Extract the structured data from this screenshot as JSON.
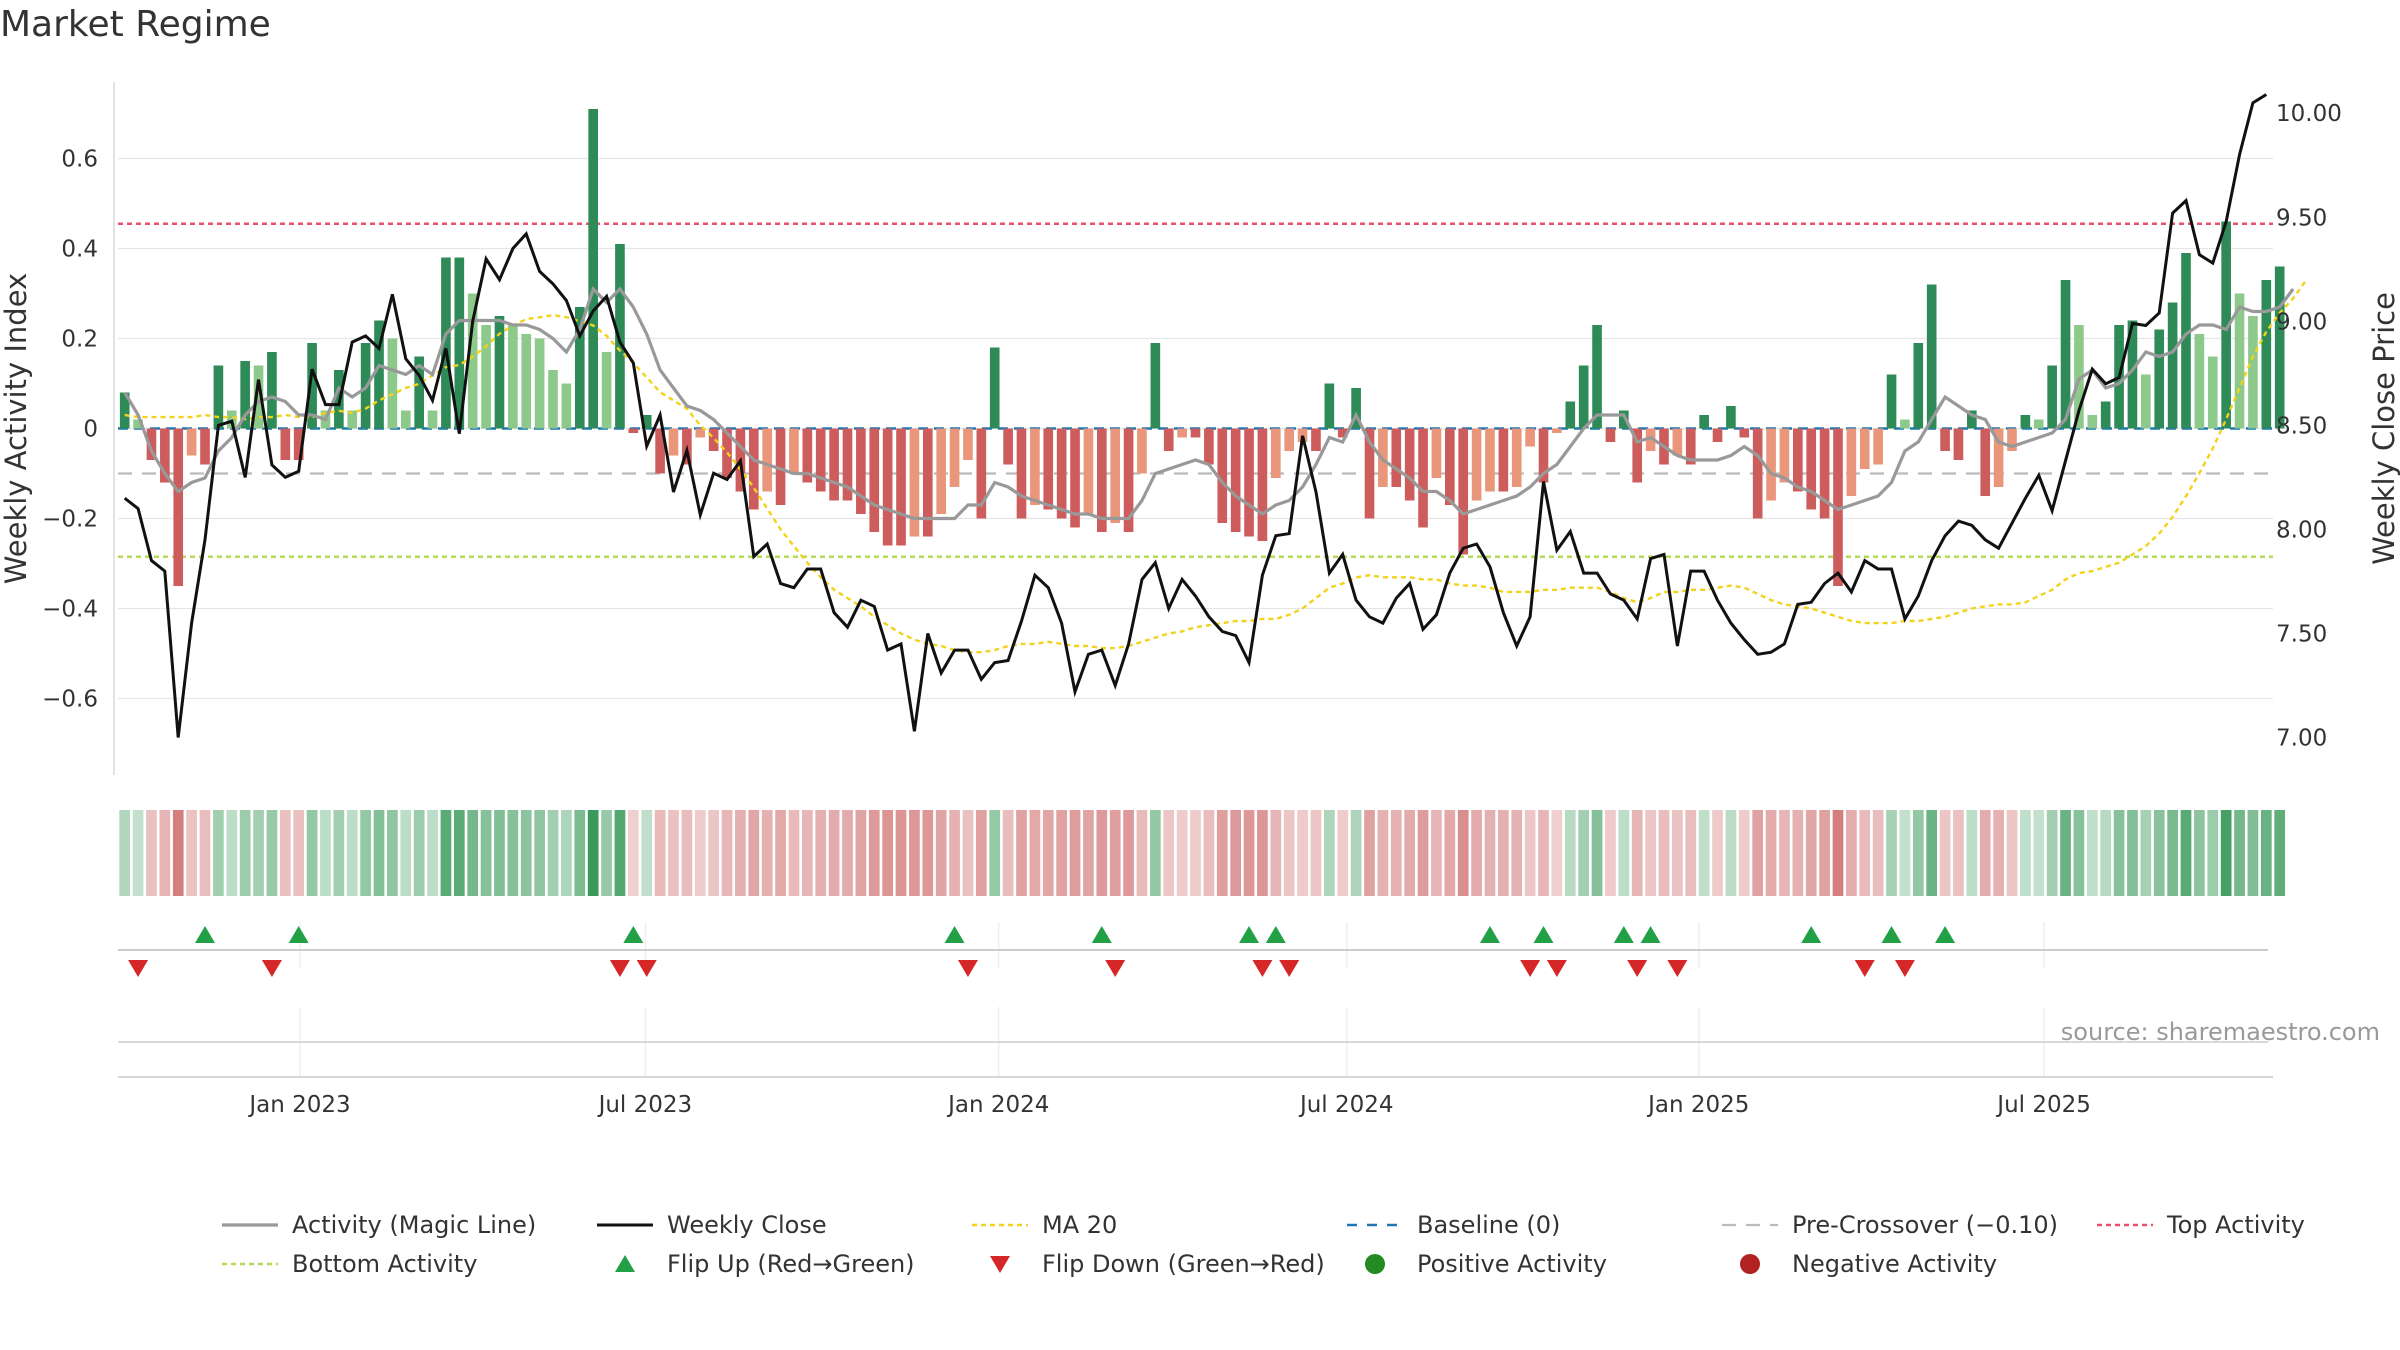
{
  "chart_data": {
    "type": "bar+line",
    "title": "Market Regime",
    "ylabel_left": "Weekly Activity Index",
    "ylabel_right": "Weekly Close Price",
    "source": "source: sharemaestro.com",
    "left_axis": {
      "ylim": [
        -0.77,
        0.77
      ],
      "ticks": [
        0.6,
        0.4,
        0.2,
        0,
        -0.2,
        -0.4,
        -0.6
      ],
      "tick_labels": [
        "0.6",
        "0.4",
        "0.2",
        "0",
        "−0.2",
        "−0.4",
        "−0.6"
      ]
    },
    "right_axis": {
      "ylim": [
        6.82,
        10.15
      ],
      "ticks": [
        10.0,
        9.5,
        9.0,
        8.5,
        8.0,
        7.5,
        7.0
      ],
      "tick_labels": [
        "10.00",
        "9.50",
        "9.00",
        "8.50",
        "8.00",
        "7.50",
        "7.00"
      ]
    },
    "x_axis": {
      "start_date": "2022-10-03",
      "ticks": [
        {
          "label": "Jan 2023",
          "week": 14.1
        },
        {
          "label": "Jul 2023",
          "week": 39.9
        },
        {
          "label": "Jan 2024",
          "week": 66.3
        },
        {
          "label": "Jul 2024",
          "week": 92.3
        },
        {
          "label": "Jan 2025",
          "week": 118.6
        },
        {
          "label": "Jul 2025",
          "week": 144.4
        }
      ]
    },
    "reference_lines": {
      "baseline": 0,
      "pre_crossover": -0.1,
      "top_activity": 0.455,
      "bottom_activity": -0.285
    },
    "activity_bars": [
      0.08,
      0.02,
      -0.07,
      -0.12,
      -0.35,
      -0.06,
      -0.08,
      0.14,
      0.04,
      0.15,
      0.14,
      0.17,
      -0.07,
      -0.07,
      0.19,
      0.04,
      0.13,
      0.04,
      0.19,
      0.24,
      0.2,
      0.04,
      0.16,
      0.04,
      0.38,
      0.38,
      0.3,
      0.23,
      0.25,
      0.23,
      0.21,
      0.2,
      0.13,
      0.1,
      0.27,
      0.71,
      0.17,
      0.41,
      -0.01,
      0.03,
      -0.1,
      -0.06,
      -0.08,
      -0.02,
      -0.05,
      -0.11,
      -0.14,
      -0.18,
      -0.14,
      -0.17,
      -0.1,
      -0.12,
      -0.14,
      -0.16,
      -0.16,
      -0.19,
      -0.23,
      -0.26,
      -0.26,
      -0.24,
      -0.24,
      -0.19,
      -0.13,
      -0.07,
      -0.2,
      0.18,
      -0.08,
      -0.2,
      -0.17,
      -0.18,
      -0.2,
      -0.22,
      -0.19,
      -0.23,
      -0.21,
      -0.23,
      -0.1,
      0.19,
      -0.05,
      -0.02,
      -0.02,
      -0.08,
      -0.21,
      -0.23,
      -0.24,
      -0.25,
      -0.11,
      -0.05,
      -0.03,
      -0.05,
      0.1,
      -0.02,
      0.09,
      -0.2,
      -0.13,
      -0.13,
      -0.16,
      -0.22,
      -0.11,
      -0.17,
      -0.28,
      -0.16,
      -0.14,
      -0.14,
      -0.13,
      -0.04,
      -0.12,
      -0.01,
      0.06,
      0.14,
      0.23,
      -0.03,
      0.04,
      -0.12,
      -0.05,
      -0.08,
      -0.06,
      -0.08,
      0.03,
      -0.03,
      0.05,
      -0.02,
      -0.2,
      -0.16,
      -0.12,
      -0.14,
      -0.18,
      -0.2,
      -0.35,
      -0.15,
      -0.09,
      -0.08,
      0.12,
      0.02,
      0.19,
      0.32,
      -0.05,
      -0.07,
      0.04,
      -0.15,
      -0.13,
      -0.05,
      0.03,
      0.02,
      0.14,
      0.33,
      0.23,
      0.03,
      0.06,
      0.23,
      0.24,
      0.12,
      0.22,
      0.28,
      0.39,
      0.21,
      0.16,
      0.46,
      0.3,
      0.25,
      0.33,
      0.36
    ],
    "magic_line": [
      0.08,
      0.03,
      -0.05,
      -0.1,
      -0.14,
      -0.12,
      -0.11,
      -0.05,
      -0.02,
      0.03,
      0.06,
      0.07,
      0.06,
      0.03,
      0.03,
      0.02,
      0.09,
      0.07,
      0.09,
      0.14,
      0.13,
      0.12,
      0.14,
      0.12,
      0.21,
      0.24,
      0.24,
      0.24,
      0.24,
      0.23,
      0.23,
      0.22,
      0.2,
      0.17,
      0.22,
      0.31,
      0.28,
      0.31,
      0.27,
      0.21,
      0.13,
      0.09,
      0.05,
      0.04,
      0.02,
      -0.01,
      -0.04,
      -0.07,
      -0.08,
      -0.09,
      -0.1,
      -0.1,
      -0.11,
      -0.12,
      -0.13,
      -0.15,
      -0.17,
      -0.18,
      -0.19,
      -0.2,
      -0.2,
      -0.2,
      -0.2,
      -0.17,
      -0.17,
      -0.12,
      -0.13,
      -0.15,
      -0.16,
      -0.17,
      -0.18,
      -0.19,
      -0.19,
      -0.2,
      -0.2,
      -0.2,
      -0.16,
      -0.1,
      -0.09,
      -0.08,
      -0.07,
      -0.08,
      -0.12,
      -0.15,
      -0.17,
      -0.19,
      -0.17,
      -0.16,
      -0.13,
      -0.08,
      -0.02,
      -0.03,
      0.03,
      -0.03,
      -0.07,
      -0.09,
      -0.11,
      -0.14,
      -0.14,
      -0.16,
      -0.19,
      -0.18,
      -0.17,
      -0.16,
      -0.15,
      -0.13,
      -0.1,
      -0.08,
      -0.04,
      0.0,
      0.03,
      0.03,
      0.03,
      -0.03,
      -0.02,
      -0.04,
      -0.06,
      -0.07,
      -0.07,
      -0.07,
      -0.06,
      -0.04,
      -0.06,
      -0.1,
      -0.11,
      -0.13,
      -0.14,
      -0.16,
      -0.18,
      -0.17,
      -0.16,
      -0.15,
      -0.12,
      -0.05,
      -0.03,
      0.02,
      0.07,
      0.05,
      0.03,
      0.02,
      -0.03,
      -0.04,
      -0.03,
      -0.02,
      -0.01,
      0.02,
      0.11,
      0.13,
      0.09,
      0.1,
      0.13,
      0.17,
      0.16,
      0.17,
      0.21,
      0.23,
      0.23,
      0.22,
      0.27,
      0.26,
      0.26,
      0.27,
      0.31
    ],
    "weekly_close": [
      8.15,
      8.1,
      7.85,
      7.8,
      7.0,
      7.55,
      7.95,
      8.5,
      8.52,
      8.25,
      8.72,
      8.31,
      8.25,
      8.28,
      8.77,
      8.6,
      8.6,
      8.9,
      8.93,
      8.87,
      9.13,
      8.82,
      8.74,
      8.62,
      8.87,
      8.46,
      9.0,
      9.3,
      9.2,
      9.35,
      9.42,
      9.24,
      9.18,
      9.1,
      8.93,
      9.05,
      9.12,
      8.9,
      8.8,
      8.4,
      8.55,
      8.18,
      8.38,
      8.07,
      8.27,
      8.24,
      8.33,
      7.87,
      7.93,
      7.74,
      7.72,
      7.81,
      7.81,
      7.6,
      7.53,
      7.66,
      7.63,
      7.42,
      7.45,
      7.03,
      7.5,
      7.31,
      7.42,
      7.42,
      7.28,
      7.36,
      7.37,
      7.56,
      7.78,
      7.72,
      7.55,
      7.22,
      7.4,
      7.42,
      7.25,
      7.45,
      7.76,
      7.84,
      7.62,
      7.76,
      7.68,
      7.58,
      7.51,
      7.49,
      7.36,
      7.78,
      7.97,
      7.98,
      8.45,
      8.18,
      7.79,
      7.88,
      7.66,
      7.58,
      7.55,
      7.67,
      7.74,
      7.52,
      7.59,
      7.79,
      7.91,
      7.93,
      7.82,
      7.6,
      7.44,
      7.58,
      8.23,
      7.9,
      7.99,
      7.79,
      7.79,
      7.69,
      7.66,
      7.57,
      7.86,
      7.88,
      7.44,
      7.8,
      7.8,
      7.66,
      7.55,
      7.47,
      7.4,
      7.41,
      7.45,
      7.64,
      7.65,
      7.74,
      7.79,
      7.7,
      7.85,
      7.81,
      7.81,
      7.57,
      7.68,
      7.85,
      7.97,
      8.04,
      8.02,
      7.95,
      7.91,
      8.03,
      8.15,
      8.26,
      8.09,
      8.33,
      8.57,
      8.77,
      8.7,
      8.73,
      8.99,
      8.98,
      9.04,
      9.52,
      9.58,
      9.32,
      9.28,
      9.48,
      9.8,
      10.05,
      10.09
    ],
    "ma20": [
      8.55,
      8.54,
      8.54,
      8.54,
      8.54,
      8.54,
      8.55,
      8.54,
      8.54,
      8.53,
      8.54,
      8.54,
      8.55,
      8.54,
      8.54,
      8.56,
      8.57,
      8.56,
      8.58,
      8.62,
      8.65,
      8.68,
      8.7,
      8.74,
      8.78,
      8.79,
      8.83,
      8.88,
      8.94,
      8.98,
      9.01,
      9.02,
      9.03,
      9.02,
      9.0,
      8.98,
      8.93,
      8.86,
      8.8,
      8.73,
      8.66,
      8.62,
      8.58,
      8.5,
      8.44,
      8.37,
      8.29,
      8.2,
      8.1,
      8.0,
      7.92,
      7.84,
      7.77,
      7.71,
      7.67,
      7.63,
      7.58,
      7.54,
      7.5,
      7.47,
      7.45,
      7.44,
      7.42,
      7.41,
      7.41,
      7.42,
      7.44,
      7.45,
      7.45,
      7.46,
      7.45,
      7.44,
      7.44,
      7.43,
      7.43,
      7.44,
      7.46,
      7.48,
      7.5,
      7.51,
      7.53,
      7.54,
      7.55,
      7.56,
      7.56,
      7.57,
      7.57,
      7.59,
      7.62,
      7.67,
      7.72,
      7.74,
      7.77,
      7.78,
      7.77,
      7.77,
      7.77,
      7.76,
      7.76,
      7.74,
      7.73,
      7.73,
      7.72,
      7.7,
      7.7,
      7.7,
      7.71,
      7.71,
      7.72,
      7.72,
      7.72,
      7.7,
      7.67,
      7.65,
      7.67,
      7.7,
      7.7,
      7.71,
      7.71,
      7.72,
      7.73,
      7.72,
      7.69,
      7.66,
      7.64,
      7.63,
      7.62,
      7.6,
      7.58,
      7.56,
      7.55,
      7.55,
      7.55,
      7.56,
      7.56,
      7.57,
      7.58,
      7.6,
      7.62,
      7.63,
      7.64,
      7.64,
      7.65,
      7.68,
      7.71,
      7.76,
      7.79,
      7.8,
      7.82,
      7.84,
      7.88,
      7.92,
      7.98,
      8.06,
      8.16,
      8.27,
      8.39,
      8.53,
      8.68,
      8.83,
      8.95,
      9.04,
      9.11,
      9.2
    ],
    "flip_up_weeks": [
      7,
      14,
      39,
      63,
      74,
      85,
      87,
      103,
      107,
      113,
      115,
      127,
      133,
      137
    ],
    "flip_down_weeks": [
      2,
      12,
      38,
      40,
      64,
      75,
      86,
      88,
      106,
      108,
      114,
      117,
      131,
      134
    ],
    "legend": [
      "Activity (Magic Line)",
      "Weekly Close",
      "MA 20",
      "Baseline (0)",
      "Pre-Crossover (−0.10)",
      "Top Activity",
      "Bottom Activity",
      "Flip Up (Red→Green)",
      "Flip Down (Green→Red)",
      "Positive Activity",
      "Negative Activity"
    ],
    "colors": {
      "pos_dark": "#2e8b57",
      "pos_light": "#8cc98a",
      "neg_dark": "#cd5c5c",
      "neg_light": "#e9967a",
      "close": "#111111",
      "magic": "#999999",
      "ma20": "#f2d21b",
      "baseline": "#1f77b4",
      "pre": "#bbbbbb",
      "top": "#e8506e",
      "bottom": "#b6d957",
      "flip_up": "#22a045",
      "flip_down": "#d62728",
      "pos_dot": "#228b22",
      "neg_dot": "#b22222"
    }
  }
}
